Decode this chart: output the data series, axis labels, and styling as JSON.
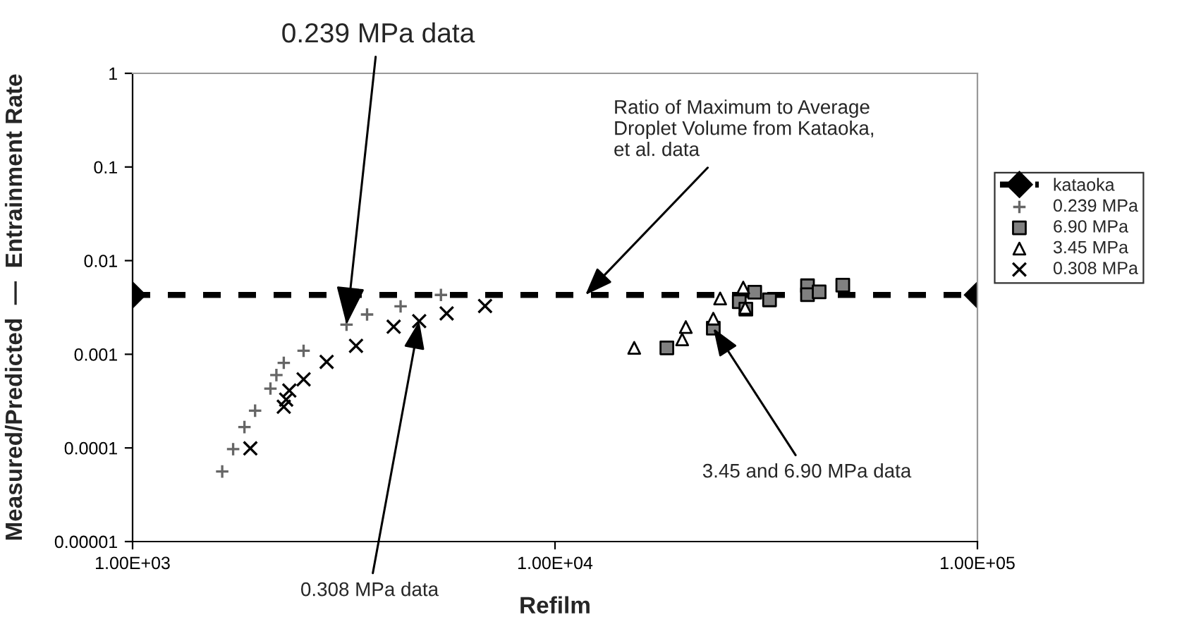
{
  "chart_data": {
    "type": "scatter",
    "xlabel": "Refilm",
    "ylabel": "Measured/Predicted  —  Entrainment Rate",
    "log": "xy",
    "xlim": [
      1000,
      100000
    ],
    "ylim": [
      1e-05,
      1
    ],
    "xticks": [
      {
        "value": 1000,
        "label": "1.00E+03"
      },
      {
        "value": 10000,
        "label": "1.00E+04"
      },
      {
        "value": 100000,
        "label": "1.00E+05"
      }
    ],
    "yticks": [
      {
        "value": 1e-05,
        "label": "0.00001"
      },
      {
        "value": 0.0001,
        "label": "0.0001"
      },
      {
        "value": 0.001,
        "label": "0.001"
      },
      {
        "value": 0.01,
        "label": "0.01"
      },
      {
        "value": 0.1,
        "label": "0.1"
      },
      1
    ],
    "grid": false,
    "legend": "right",
    "series": [
      {
        "name": "kataoka",
        "type": "line",
        "color": "#000000",
        "marker": "diamond",
        "line_style": "dashed",
        "x": [
          1000,
          100000
        ],
        "values": [
          0.0043,
          0.0043
        ]
      },
      {
        "name": "0.239 MPa",
        "type": "scatter",
        "color": "#666666",
        "marker": "plus",
        "x": [
          1630,
          1730,
          1840,
          1950,
          2120,
          2190,
          2280,
          2540,
          3210,
          3590,
          4310,
          5370
        ],
        "values": [
          5.6e-05,
          9.7e-05,
          0.000167,
          0.00025,
          0.00043,
          0.0006,
          0.00081,
          0.00109,
          0.00207,
          0.00266,
          0.00325,
          0.0043
        ]
      },
      {
        "name": "6.90 MPa",
        "type": "scatter",
        "color": "#808080",
        "marker": "square",
        "x": [
          18400,
          23700,
          27300,
          28300,
          29700,
          32200,
          39600,
          39600,
          42200,
          48000
        ],
        "values": [
          0.00117,
          0.0019,
          0.00364,
          0.00303,
          0.0046,
          0.00381,
          0.00539,
          0.00433,
          0.00464,
          0.00547
        ]
      },
      {
        "name": "3.45 MPa",
        "type": "scatter",
        "color": "#ffffff",
        "marker": "triangle",
        "x": [
          15400,
          20000,
          20400,
          23700,
          24600,
          27900,
          28200
        ],
        "values": [
          0.00117,
          0.00144,
          0.00195,
          0.0024,
          0.00394,
          0.00515,
          0.00313
        ]
      },
      {
        "name": "0.308 MPa",
        "type": "scatter",
        "color": "#000000",
        "marker": "cross",
        "x": [
          1900,
          2280,
          2310,
          2350,
          2540,
          2880,
          3380,
          4150,
          4770,
          5540,
          6830
        ],
        "values": [
          9.9e-05,
          0.000275,
          0.000328,
          0.00041,
          0.00054,
          0.00083,
          0.00123,
          0.00197,
          0.00226,
          0.00273,
          0.00328
        ]
      }
    ],
    "annotations": [
      {
        "text": "0.239 MPa data",
        "x": 3210,
        "y": 0.00207
      },
      {
        "text": "0.308 MPa data",
        "x": 4770,
        "y": 0.00226
      },
      {
        "text": "Ratio of Maximum to Average\nDroplet Volume from Kataoka,\net al. data",
        "x": 11800,
        "y": 0.0043
      },
      {
        "text": "3.45 and 6.90 MPa data",
        "x": 23700,
        "y": 0.0019
      }
    ]
  }
}
